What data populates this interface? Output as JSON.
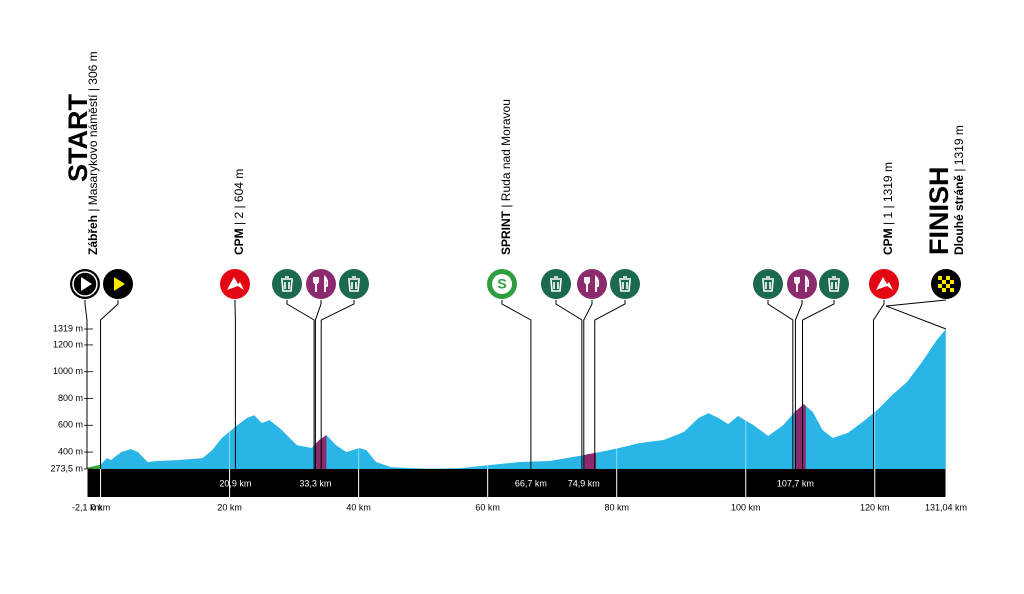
{
  "chart_data": {
    "type": "area",
    "start_title": "START",
    "start_label": [
      "Zábřeh",
      " | Masarykovo náměstí | 306 m"
    ],
    "finish_title": "FINISH",
    "finish_label": [
      "Dlouhé stráně",
      " | 1319 m"
    ],
    "x": [
      -2.1,
      -1,
      0,
      1,
      1.6,
      3.2,
      4.7,
      5.8,
      7.3,
      8.8,
      11.9,
      15.8,
      17.3,
      18.8,
      21.2,
      22.7,
      23.8,
      25,
      26.2,
      28.1,
      30.4,
      32.7,
      33.9,
      35,
      36.5,
      38.1,
      40.1,
      41.2,
      42.7,
      45,
      48.1,
      51.2,
      55.8,
      60.4,
      65,
      69.6,
      75,
      77.3,
      80.4,
      83.5,
      87.3,
      90.4,
      92.7,
      94.2,
      95.8,
      97.3,
      98.8,
      101.2,
      103.5,
      105.8,
      107.6,
      109,
      110.4,
      111.9,
      113.5,
      115.8,
      118.1,
      120.4,
      122.7,
      125,
      127.3,
      129.6,
      131.04
    ],
    "y": [
      282,
      295,
      306,
      355,
      340,
      400,
      422,
      400,
      326,
      333,
      340,
      355,
      415,
      505,
      600,
      654,
      676,
      617,
      639,
      565,
      452,
      430,
      490,
      527,
      452,
      400,
      430,
      415,
      326,
      288,
      280,
      276,
      280,
      303,
      326,
      333,
      378,
      400,
      430,
      467,
      490,
      550,
      654,
      691,
      654,
      609,
      669,
      601,
      520,
      601,
      699,
      758,
      699,
      565,
      505,
      542,
      624,
      714,
      826,
      923,
      1072,
      1236,
      1319
    ],
    "color": "#29b5e6",
    "zones": [
      {
        "start": -2.1,
        "end": 0,
        "color": "#3aaa35"
      },
      {
        "start": 33.3,
        "end": 35,
        "color": "#8c2a6e"
      },
      {
        "start": 74.9,
        "end": 76.8,
        "color": "#8c2a6e"
      },
      {
        "start": 107.6,
        "end": 109.3,
        "color": "#8c2a6e"
      }
    ],
    "xlim": [
      -2.1,
      131.04
    ],
    "ylim": [
      273.5,
      1319
    ],
    "xticks": [
      {
        "value": -2.1,
        "label": "-2,1 km"
      },
      {
        "value": 0,
        "label": "0 km"
      },
      {
        "value": 20,
        "label": "20 km"
      },
      {
        "value": 40,
        "label": "40 km"
      },
      {
        "value": 60,
        "label": "60 km"
      },
      {
        "value": 80,
        "label": "80 km"
      },
      {
        "value": 100,
        "label": "100 km"
      },
      {
        "value": 120,
        "label": "120 km"
      },
      {
        "value": 131.04,
        "label": "131,04 km"
      }
    ],
    "yticks": [
      {
        "value": 273.5,
        "label": "273,5 m"
      },
      {
        "value": 400,
        "label": "400 m"
      },
      {
        "value": 600,
        "label": "600 m"
      },
      {
        "value": 800,
        "label": "800 m"
      },
      {
        "value": 1000,
        "label": "1000 m"
      },
      {
        "value": 1200,
        "label": "1200 m"
      },
      {
        "value": 1319,
        "label": "1319 m"
      }
    ],
    "markers": [
      {
        "icon": "start",
        "km": -2.1
      },
      {
        "icon": "km0",
        "km": 0
      },
      {
        "icon": "climb",
        "km": 20.9,
        "km_label": "20,9 km",
        "label": [
          "CPM",
          " | 2 | 604 m"
        ]
      },
      {
        "icon": "trash",
        "km": 33.1
      },
      {
        "icon": "food",
        "km": 33.3,
        "km_label": "33,3 km"
      },
      {
        "icon": "trash",
        "km": 34.2
      },
      {
        "icon": "sprint",
        "km": 66.7,
        "km_label": "66,7 km",
        "icon_text": "S",
        "label": [
          "SPRINT",
          " | Ruda nad Moravou"
        ]
      },
      {
        "icon": "trash",
        "km": 74.6
      },
      {
        "icon": "food",
        "km": 74.9,
        "km_label": "74,9 km"
      },
      {
        "icon": "trash",
        "km": 76.6
      },
      {
        "icon": "trash",
        "km": 107.3
      },
      {
        "icon": "food",
        "km": 107.7,
        "km_label": "107,7 km"
      },
      {
        "icon": "trash",
        "km": 108.8
      },
      {
        "icon": "climb",
        "km": 119.8,
        "label": [
          "CPM",
          " | 1 | 1319 m"
        ]
      },
      {
        "icon": "finish",
        "km": 131.04
      }
    ],
    "icon_x": [
      85,
      118,
      235,
      287,
      321,
      354,
      502,
      556,
      592,
      625,
      768,
      802,
      834,
      884,
      946
    ]
  }
}
